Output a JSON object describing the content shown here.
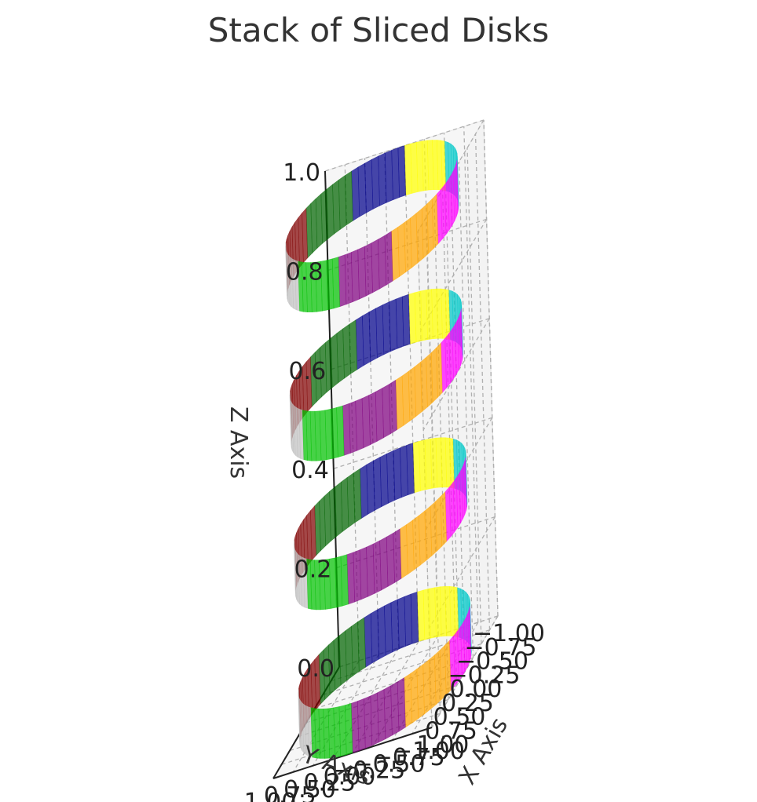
{
  "chart_data": {
    "type": "3d-surface",
    "title": "Stack of Sliced Disks",
    "xlabel": "X Axis",
    "ylabel": "Y Axis",
    "zlabel": "Z Axis",
    "xlim": [
      -1.0,
      1.0
    ],
    "ylim": [
      -1.0,
      1.0
    ],
    "zlim": [
      0.0,
      1.0
    ],
    "x_ticks": [
      "−1.00",
      "−0.75",
      "−0.50",
      "−0.25",
      "0.00",
      "0.25",
      "0.50",
      "0.75",
      "1.00"
    ],
    "y_ticks": [
      "−1.00",
      "−0.75",
      "−0.50",
      "−0.25",
      "0.00",
      "0.25",
      "0.50",
      "0.75",
      "1.00"
    ],
    "z_ticks": [
      "0.0",
      "0.2",
      "0.4",
      "0.6",
      "0.8",
      "1.0"
    ],
    "grid": true,
    "disks": [
      {
        "z_bottom": 0.0,
        "z_top": 0.1,
        "radius": 1.0
      },
      {
        "z_bottom": 0.3,
        "z_top": 0.4,
        "radius": 1.0
      },
      {
        "z_bottom": 0.6,
        "z_top": 0.7,
        "radius": 1.0
      },
      {
        "z_bottom": 0.9,
        "z_top": 1.0,
        "radius": 1.0
      }
    ],
    "slices": [
      {
        "color": "#00c000"
      },
      {
        "color": "#c0c0c0"
      },
      {
        "color": "#800000"
      },
      {
        "color": "#006400"
      },
      {
        "color": "#00008b"
      },
      {
        "color": "#ffff00"
      },
      {
        "color": "#00c8c8"
      },
      {
        "color": "#ff00ff"
      },
      {
        "color": "#ffa500"
      },
      {
        "color": "#800080"
      }
    ]
  }
}
